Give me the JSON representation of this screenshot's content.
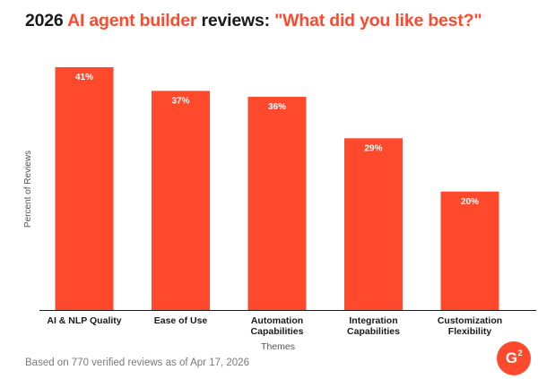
{
  "header": {
    "title_part1": "2026 ",
    "title_accent1": "AI agent builder",
    "title_part2": " reviews: ",
    "title_accent2": "\"What did you like best?\""
  },
  "chart_data": {
    "type": "bar",
    "categories": [
      "AI & NLP Quality",
      "Ease of Use",
      "Automation Capabilities",
      "Integration Capabilities",
      "Customization Flexibility"
    ],
    "category_lines": [
      [
        "AI & NLP Quality"
      ],
      [
        "Ease of Use"
      ],
      [
        "Automation",
        "Capabilities"
      ],
      [
        "Integration",
        "Capabilities"
      ],
      [
        "Customization",
        "Flexibility"
      ]
    ],
    "values": [
      41,
      37,
      36,
      29,
      20
    ],
    "data_labels": [
      "41%",
      "37%",
      "36%",
      "29%",
      "20%"
    ],
    "xlabel": "Themes",
    "ylabel": "Percent of Reviews",
    "ylim": [
      0,
      41
    ],
    "grid": false,
    "bar_color": "#ff492c"
  },
  "footer": {
    "note": "Based on 770 verified reviews as of Apr 17, 2026",
    "logo_text": "G",
    "logo_sup": "2"
  },
  "colors": {
    "accent": "#ff492c",
    "text": "#1a1a1a",
    "muted": "#7a7a7a"
  }
}
